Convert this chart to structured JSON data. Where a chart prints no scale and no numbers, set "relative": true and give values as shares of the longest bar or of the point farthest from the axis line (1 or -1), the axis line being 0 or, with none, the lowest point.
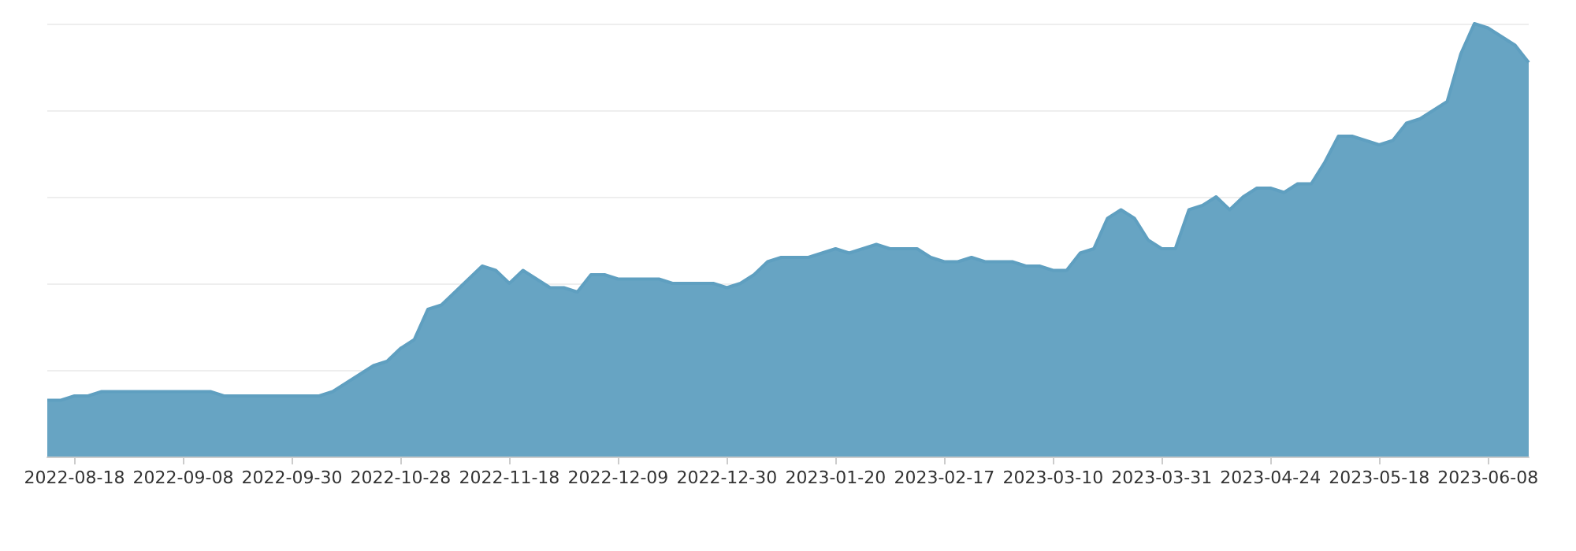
{
  "chart_data": {
    "type": "area",
    "relative": true,
    "grid": true,
    "color": "#5f9fc0",
    "categories": [
      null,
      null,
      "2022-08-18",
      null,
      null,
      null,
      null,
      null,
      null,
      null,
      "2022-09-08",
      null,
      null,
      null,
      null,
      null,
      null,
      null,
      "2022-09-30",
      null,
      null,
      null,
      null,
      null,
      null,
      null,
      "2022-10-28",
      null,
      null,
      null,
      null,
      null,
      null,
      null,
      "2022-11-18",
      null,
      null,
      null,
      null,
      null,
      null,
      null,
      "2022-12-09",
      null,
      null,
      null,
      null,
      null,
      null,
      null,
      "2022-12-30",
      null,
      null,
      null,
      null,
      null,
      null,
      null,
      "2023-01-20",
      null,
      null,
      null,
      null,
      null,
      null,
      null,
      "2023-02-17",
      null,
      null,
      null,
      null,
      null,
      null,
      null,
      "2023-03-10",
      null,
      null,
      null,
      null,
      null,
      null,
      null,
      "2023-03-31",
      null,
      null,
      null,
      null,
      null,
      null,
      null,
      "2023-04-24",
      null,
      null,
      null,
      null,
      null,
      null,
      null,
      "2023-05-18",
      null,
      null,
      null,
      null,
      null,
      null,
      null,
      "2023-06-08",
      null,
      null,
      null
    ],
    "values": [
      0.13,
      0.13,
      0.14,
      0.14,
      0.15,
      0.15,
      0.15,
      0.15,
      0.15,
      0.15,
      0.15,
      0.15,
      0.15,
      0.14,
      0.14,
      0.14,
      0.14,
      0.14,
      0.14,
      0.14,
      0.14,
      0.15,
      0.17,
      0.19,
      0.21,
      0.22,
      0.25,
      0.27,
      0.34,
      0.35,
      0.38,
      0.41,
      0.44,
      0.43,
      0.4,
      0.43,
      0.41,
      0.39,
      0.39,
      0.38,
      0.42,
      0.42,
      0.41,
      0.41,
      0.41,
      0.41,
      0.4,
      0.4,
      0.4,
      0.4,
      0.39,
      0.4,
      0.42,
      0.45,
      0.46,
      0.46,
      0.46,
      0.47,
      0.48,
      0.47,
      0.48,
      0.49,
      0.48,
      0.48,
      0.48,
      0.46,
      0.45,
      0.45,
      0.46,
      0.45,
      0.45,
      0.45,
      0.44,
      0.44,
      0.43,
      0.43,
      0.47,
      0.48,
      0.55,
      0.57,
      0.55,
      0.5,
      0.48,
      0.48,
      0.57,
      0.58,
      0.6,
      0.57,
      0.6,
      0.62,
      0.62,
      0.61,
      0.63,
      0.63,
      0.68,
      0.74,
      0.74,
      0.73,
      0.72,
      0.73,
      0.77,
      0.78,
      0.8,
      0.82,
      0.93,
      1,
      0.99,
      0.97,
      0.95,
      0.91
    ]
  }
}
